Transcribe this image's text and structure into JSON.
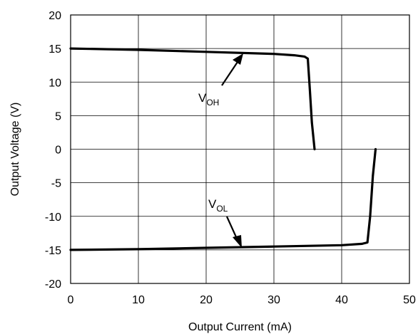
{
  "chart_data": {
    "type": "line",
    "title": "",
    "xlabel": "Output Current (mA)",
    "ylabel": "Output Voltage (V)",
    "xlim": [
      0,
      50
    ],
    "ylim": [
      -20,
      20
    ],
    "x_ticks": [
      0,
      10,
      20,
      30,
      40,
      50
    ],
    "y_ticks": [
      20,
      15,
      10,
      5,
      0,
      -5,
      -10,
      -15,
      -20
    ],
    "grid": true,
    "series": [
      {
        "name": "VOH",
        "x": [
          0,
          10,
          20,
          30,
          33,
          34.5,
          35.0,
          35.3,
          35.6,
          36.0
        ],
        "y": [
          15.0,
          14.8,
          14.5,
          14.2,
          14.0,
          13.8,
          13.5,
          9.0,
          4.0,
          0.0
        ]
      },
      {
        "name": "VOL",
        "x": [
          0,
          10,
          20,
          30,
          40,
          43.0,
          43.8,
          44.2,
          44.6,
          45.0
        ],
        "y": [
          -15.0,
          -14.9,
          -14.7,
          -14.5,
          -14.3,
          -14.1,
          -13.9,
          -10.0,
          -4.0,
          0.0
        ]
      }
    ],
    "annotations": [
      {
        "main": "V",
        "sub": "OH",
        "target_series": "VOH"
      },
      {
        "main": "V",
        "sub": "OL",
        "target_series": "VOL"
      }
    ]
  }
}
